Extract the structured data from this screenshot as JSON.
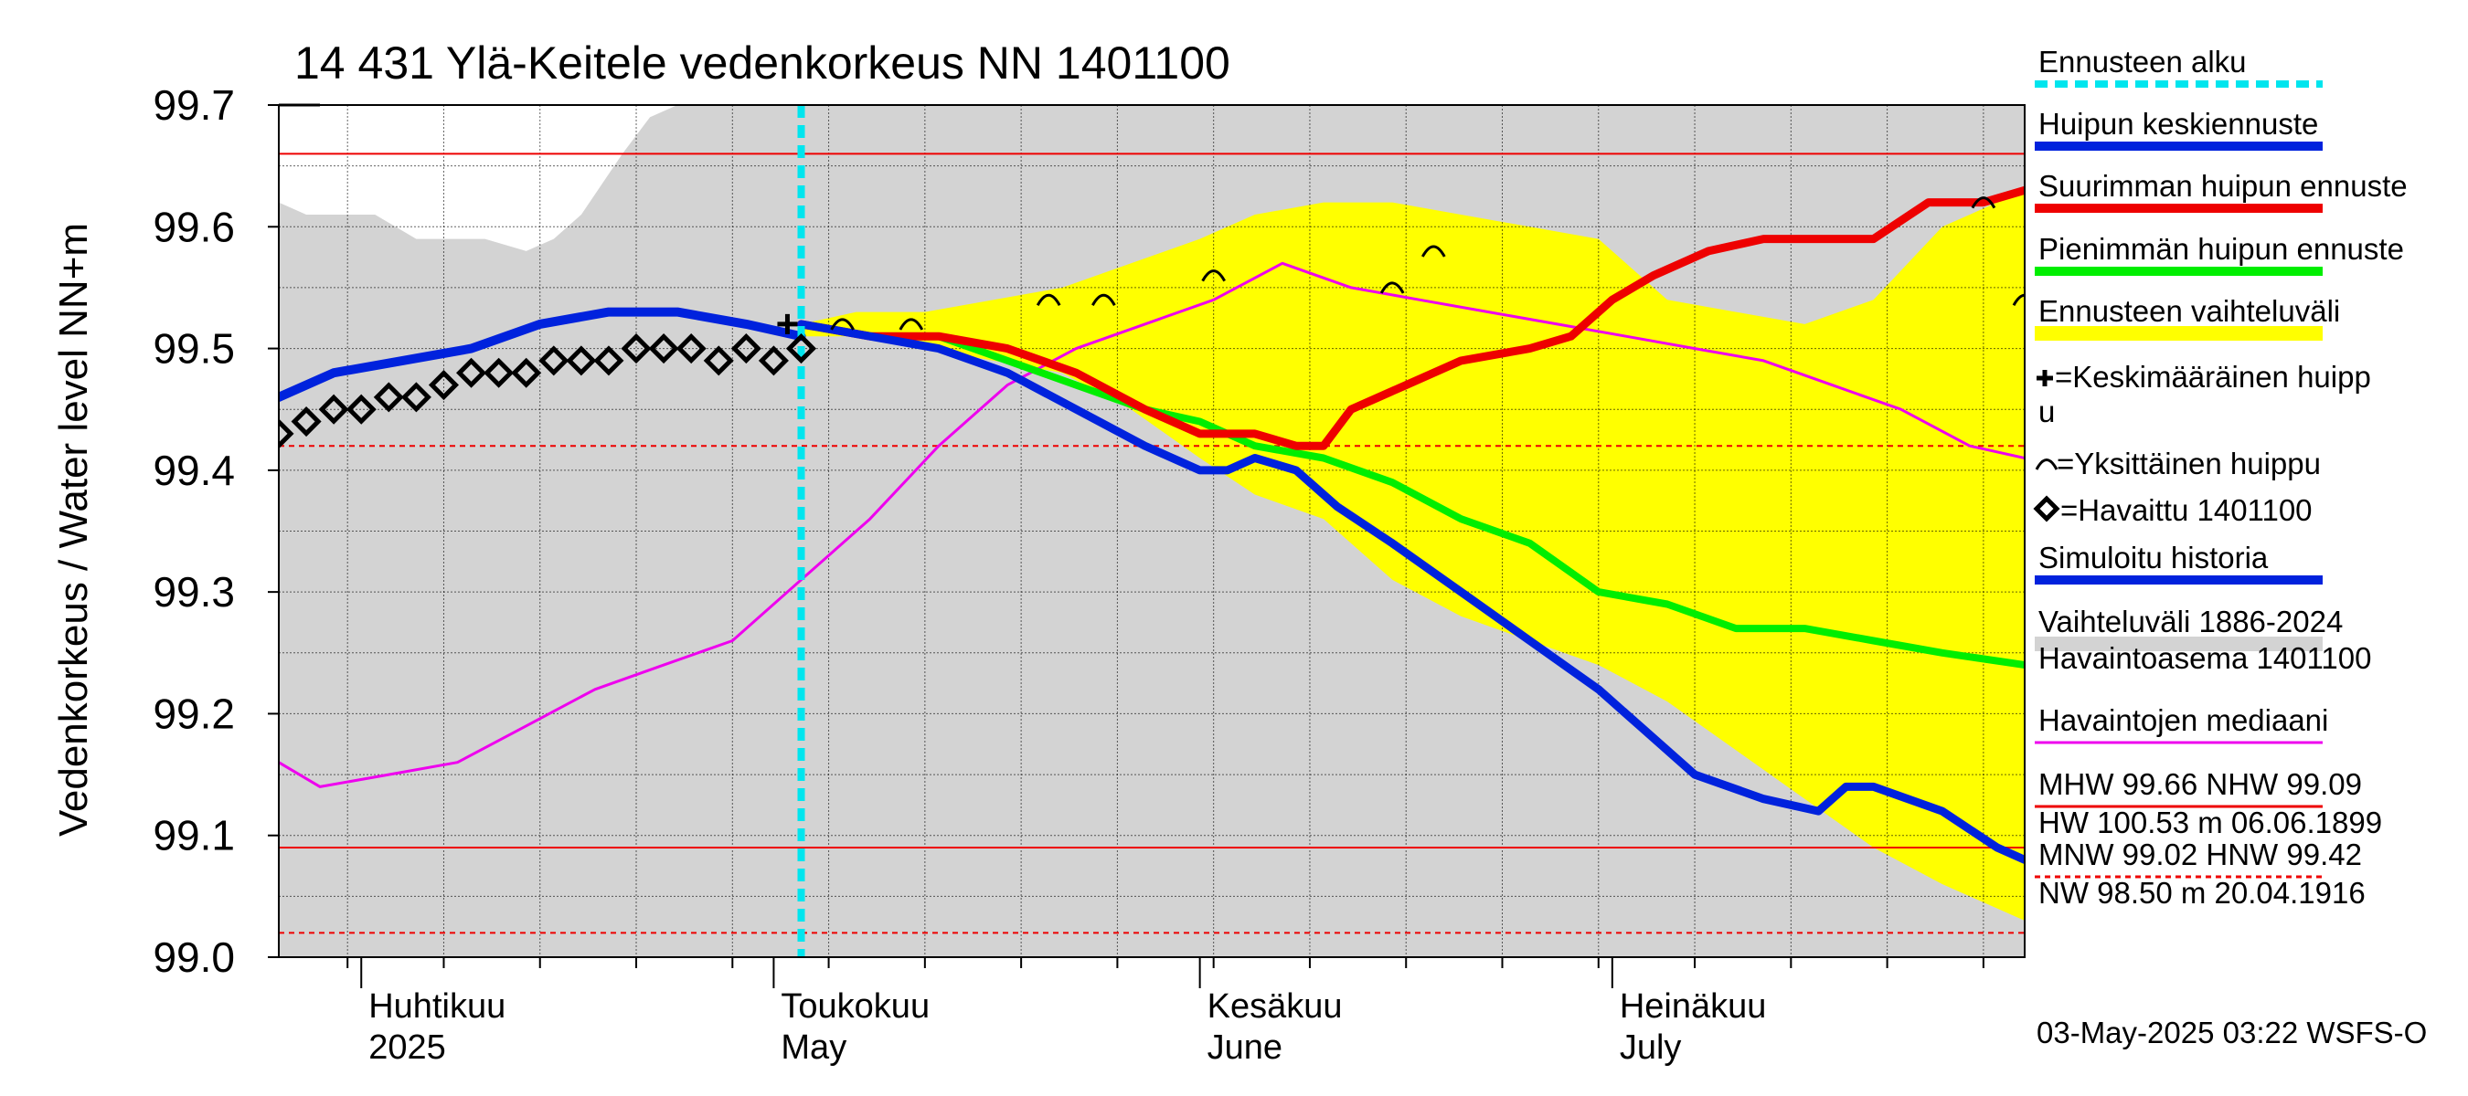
{
  "chart_data": {
    "type": "line",
    "title": "14 431 Ylä-Keitele vedenkorkeus NN 1401100",
    "ylabel": "Vedenkorkeus / Water level   NN+m",
    "ylim": [
      99.0,
      99.7
    ],
    "yticks": [
      "99.0",
      "99.1",
      "99.2",
      "99.3",
      "99.4",
      "99.5",
      "99.6",
      "99.7"
    ],
    "xlim": [
      "2025-03-26",
      "2025-07-31"
    ],
    "x_month_labels": [
      {
        "date": "2025-04-01",
        "line1": "Huhtikuu",
        "line2": "2025"
      },
      {
        "date": "2025-05-01",
        "line1": "Toukokuu",
        "line2": "May"
      },
      {
        "date": "2025-06-01",
        "line1": "Kesäkuu",
        "line2": "June"
      },
      {
        "date": "2025-07-01",
        "line1": "Heinäkuu",
        "line2": "July"
      }
    ],
    "forecast_start": "2025-05-03",
    "reference_lines": {
      "MHW": 99.66,
      "NHW": 99.09,
      "MNW": 99.02,
      "HNW": 99.42
    },
    "historical_range": {
      "x": [
        "2025-03-26",
        "2025-03-28",
        "2025-04-02",
        "2025-04-05",
        "2025-04-10",
        "2025-04-13",
        "2025-04-15",
        "2025-04-17",
        "2025-04-20",
        "2025-04-22",
        "2025-04-24",
        "2025-04-30",
        "2025-07-31"
      ],
      "lower": [
        99.0,
        99.0,
        99.0,
        99.0,
        99.0,
        99.0,
        99.0,
        99.0,
        99.0,
        99.0,
        99.0,
        99.0,
        99.0
      ],
      "upper": [
        99.62,
        99.61,
        99.61,
        99.59,
        99.59,
        99.58,
        99.59,
        99.61,
        99.66,
        99.69,
        99.7,
        99.7,
        99.7
      ]
    },
    "forecast_range": {
      "x": [
        "2025-05-03",
        "2025-05-07",
        "2025-05-12",
        "2025-05-17",
        "2025-05-22",
        "2025-05-27",
        "2025-06-01",
        "2025-06-05",
        "2025-06-10",
        "2025-06-15",
        "2025-06-20",
        "2025-06-25",
        "2025-06-30",
        "2025-07-05",
        "2025-07-10",
        "2025-07-15",
        "2025-07-20",
        "2025-07-25",
        "2025-07-31"
      ],
      "lower": [
        99.51,
        99.51,
        99.5,
        99.49,
        99.48,
        99.45,
        99.41,
        99.38,
        99.36,
        99.31,
        99.28,
        99.26,
        99.24,
        99.21,
        99.17,
        99.13,
        99.09,
        99.06,
        99.03
      ],
      "upper": [
        99.52,
        99.53,
        99.53,
        99.54,
        99.55,
        99.57,
        99.59,
        99.61,
        99.62,
        99.62,
        99.61,
        99.6,
        99.59,
        99.54,
        99.53,
        99.52,
        99.54,
        99.6,
        99.63
      ]
    },
    "series": [
      {
        "name": "Huipun keskiennuste",
        "color": "#0022dd",
        "x": [
          "2025-05-03",
          "2025-05-08",
          "2025-05-13",
          "2025-05-18",
          "2025-05-23",
          "2025-05-28",
          "2025-06-01",
          "2025-06-03",
          "2025-06-05",
          "2025-06-08",
          "2025-06-11",
          "2025-06-15",
          "2025-06-20",
          "2025-06-25",
          "2025-06-30",
          "2025-07-03",
          "2025-07-07",
          "2025-07-12",
          "2025-07-16",
          "2025-07-18",
          "2025-07-20",
          "2025-07-25",
          "2025-07-29",
          "2025-07-31"
        ],
        "y": [
          99.52,
          99.51,
          99.5,
          99.48,
          99.45,
          99.42,
          99.4,
          99.4,
          99.41,
          99.4,
          99.37,
          99.34,
          99.3,
          99.26,
          99.22,
          99.19,
          99.15,
          99.13,
          99.12,
          99.14,
          99.14,
          99.12,
          99.09,
          99.08
        ]
      },
      {
        "name": "Suurimman huipun ennuste",
        "color": "#ee0000",
        "x": [
          "2025-05-03",
          "2025-05-08",
          "2025-05-13",
          "2025-05-18",
          "2025-05-23",
          "2025-05-28",
          "2025-06-01",
          "2025-06-05",
          "2025-06-08",
          "2025-06-10",
          "2025-06-12",
          "2025-06-16",
          "2025-06-20",
          "2025-06-25",
          "2025-06-28",
          "2025-07-01",
          "2025-07-04",
          "2025-07-08",
          "2025-07-12",
          "2025-07-16",
          "2025-07-20",
          "2025-07-24",
          "2025-07-28",
          "2025-07-31"
        ],
        "y": [
          99.52,
          99.51,
          99.51,
          99.5,
          99.48,
          99.45,
          99.43,
          99.43,
          99.42,
          99.42,
          99.45,
          99.47,
          99.49,
          99.5,
          99.51,
          99.54,
          99.56,
          99.58,
          99.59,
          99.59,
          99.59,
          99.62,
          99.62,
          99.63
        ]
      },
      {
        "name": "Pienimmän huipun ennuste",
        "color": "#00ee00",
        "x": [
          "2025-05-03",
          "2025-05-08",
          "2025-05-13",
          "2025-05-18",
          "2025-05-23",
          "2025-05-28",
          "2025-06-01",
          "2025-06-05",
          "2025-06-10",
          "2025-06-15",
          "2025-06-20",
          "2025-06-25",
          "2025-06-30",
          "2025-07-05",
          "2025-07-10",
          "2025-07-15",
          "2025-07-20",
          "2025-07-25",
          "2025-07-31"
        ],
        "y": [
          99.52,
          99.51,
          99.51,
          99.49,
          99.47,
          99.45,
          99.44,
          99.42,
          99.41,
          99.39,
          99.36,
          99.34,
          99.3,
          99.29,
          99.27,
          99.27,
          99.26,
          99.25,
          99.24
        ]
      },
      {
        "name": "Simuloitu historia",
        "color": "#0022dd",
        "x": [
          "2025-03-26",
          "2025-03-30",
          "2025-04-04",
          "2025-04-09",
          "2025-04-14",
          "2025-04-19",
          "2025-04-24",
          "2025-04-29",
          "2025-05-03"
        ],
        "y": [
          99.46,
          99.48,
          99.49,
          99.5,
          99.52,
          99.53,
          99.53,
          99.52,
          99.51
        ]
      },
      {
        "name": "Havaintojen mediaani",
        "color": "#ee00ee",
        "x": [
          "2025-03-26",
          "2025-03-29",
          "2025-04-03",
          "2025-04-08",
          "2025-04-13",
          "2025-04-18",
          "2025-04-23",
          "2025-04-28",
          "2025-05-03",
          "2025-05-08",
          "2025-05-13",
          "2025-05-18",
          "2025-05-23",
          "2025-05-28",
          "2025-06-02",
          "2025-06-07",
          "2025-06-12",
          "2025-06-17",
          "2025-06-22",
          "2025-06-27",
          "2025-07-02",
          "2025-07-07",
          "2025-07-12",
          "2025-07-17",
          "2025-07-22",
          "2025-07-27",
          "2025-07-31"
        ],
        "y": [
          99.16,
          99.14,
          99.15,
          99.16,
          99.19,
          99.22,
          99.24,
          99.26,
          99.31,
          99.36,
          99.42,
          99.47,
          99.5,
          99.52,
          99.54,
          99.57,
          99.55,
          99.54,
          99.53,
          99.52,
          99.51,
          99.5,
          99.49,
          99.47,
          99.45,
          99.42,
          99.41
        ]
      },
      {
        "name": "Havaittu 1401100",
        "color": "#000000",
        "x": [
          "2025-03-26",
          "2025-03-28",
          "2025-03-30",
          "2025-04-01",
          "2025-04-03",
          "2025-04-05",
          "2025-04-07",
          "2025-04-09",
          "2025-04-11",
          "2025-04-13",
          "2025-04-15",
          "2025-04-17",
          "2025-04-19",
          "2025-04-21",
          "2025-04-23",
          "2025-04-25",
          "2025-04-27",
          "2025-04-29",
          "2025-05-01",
          "2025-05-03"
        ],
        "y": [
          99.43,
          99.44,
          99.45,
          99.45,
          99.46,
          99.46,
          99.47,
          99.48,
          99.48,
          99.48,
          99.49,
          99.49,
          99.49,
          99.5,
          99.5,
          99.5,
          99.49,
          99.5,
          99.49,
          99.5
        ]
      }
    ],
    "keskimaarainen_huippu": {
      "x": "2025-05-02",
      "y": 99.52
    },
    "yksittaiset_huiput": [
      {
        "x": "2025-05-06",
        "y": 99.52
      },
      {
        "x": "2025-05-11",
        "y": 99.52
      },
      {
        "x": "2025-05-21",
        "y": 99.54
      },
      {
        "x": "2025-05-25",
        "y": 99.54
      },
      {
        "x": "2025-06-02",
        "y": 99.56
      },
      {
        "x": "2025-06-15",
        "y": 99.55
      },
      {
        "x": "2025-06-18",
        "y": 99.58
      },
      {
        "x": "2025-07-28",
        "y": 99.62
      },
      {
        "x": "2025-07-31",
        "y": 99.54
      }
    ],
    "legend": [
      {
        "label": "Ennusteen alku",
        "color": "#00e5ee",
        "style": "dash"
      },
      {
        "label": "Huipun keskiennuste",
        "color": "#0022dd",
        "style": "thick"
      },
      {
        "label": "Suurimman huipun ennuste",
        "color": "#ee0000",
        "style": "thick"
      },
      {
        "label": "Pienimmän huipun ennuste",
        "color": "#00ee00",
        "style": "thick"
      },
      {
        "label": "Ennusteen vaihteluväli",
        "color": "#ffff00",
        "style": "band"
      },
      {
        "label": "=Keskimääräinen huipp",
        "label2": "u",
        "color": "#000000",
        "style": "plus"
      },
      {
        "label": "=Yksittäinen huippu",
        "color": "#000000",
        "style": "arc"
      },
      {
        "label": "=Havaittu 1401100",
        "color": "#000000",
        "style": "diamond"
      },
      {
        "label": "Simuloitu historia",
        "color": "#0022dd",
        "style": "thick"
      },
      {
        "label": "Vaihteluväli 1886-2024",
        "label2": " Havaintoasema 1401100",
        "color": "#d3d3d3",
        "style": "band"
      },
      {
        "label": "Havaintojen mediaani",
        "color": "#ee00ee",
        "style": "line"
      },
      {
        "label": "MHW  99.66 NHW  99.09",
        "label2": "HW 100.53 m 06.06.1899",
        "color": "#ee0000",
        "style": "line"
      },
      {
        "label": "MNW  99.02 HNW  99.42",
        "label2": "NW  98.50 m 20.04.1916",
        "color": "#ee0000",
        "style": "dash"
      }
    ],
    "timestamp": "03-May-2025 03:22 WSFS-O",
    "grid": true
  }
}
